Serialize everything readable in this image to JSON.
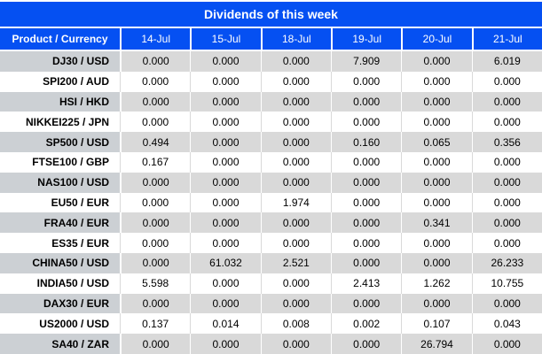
{
  "title": "Dividends of this week",
  "colors": {
    "header_bg": "#0550f2",
    "header_text": "#ffffff",
    "row_gray": "#d9d9d9",
    "label_gray": "#ccd0d4",
    "value_black": "#000000",
    "value_red": "#fa2929"
  },
  "table": {
    "corner_header": "Product / Currency",
    "date_headers": [
      "14-Jul",
      "15-Jul",
      "18-Jul",
      "19-Jul",
      "20-Jul",
      "21-Jul"
    ],
    "rows": [
      {
        "label": "DJ30 / USD",
        "values": [
          "0.000",
          "0.000",
          "0.000",
          "7.909",
          "0.000",
          "6.019"
        ],
        "red": [
          false,
          false,
          false,
          true,
          false,
          true
        ]
      },
      {
        "label": "SPI200 / AUD",
        "values": [
          "0.000",
          "0.000",
          "0.000",
          "0.000",
          "0.000",
          "0.000"
        ],
        "red": [
          false,
          false,
          false,
          false,
          false,
          false
        ]
      },
      {
        "label": "HSI / HKD",
        "values": [
          "0.000",
          "0.000",
          "0.000",
          "0.000",
          "0.000",
          "0.000"
        ],
        "red": [
          false,
          false,
          false,
          false,
          false,
          false
        ]
      },
      {
        "label": "NIKKEI225 / JPN",
        "values": [
          "0.000",
          "0.000",
          "0.000",
          "0.000",
          "0.000",
          "0.000"
        ],
        "red": [
          false,
          false,
          false,
          false,
          false,
          false
        ]
      },
      {
        "label": "SP500 / USD",
        "values": [
          "0.494",
          "0.000",
          "0.000",
          "0.160",
          "0.065",
          "0.356"
        ],
        "red": [
          true,
          false,
          false,
          true,
          true,
          true
        ]
      },
      {
        "label": "FTSE100 / GBP",
        "values": [
          "0.167",
          "0.000",
          "0.000",
          "0.000",
          "0.000",
          "0.000"
        ],
        "red": [
          true,
          false,
          false,
          false,
          false,
          false
        ]
      },
      {
        "label": "NAS100 / USD",
        "values": [
          "0.000",
          "0.000",
          "0.000",
          "0.000",
          "0.000",
          "0.000"
        ],
        "red": [
          false,
          false,
          false,
          false,
          false,
          false
        ]
      },
      {
        "label": "EU50 / EUR",
        "values": [
          "0.000",
          "0.000",
          "1.974",
          "0.000",
          "0.000",
          "0.000"
        ],
        "red": [
          false,
          false,
          true,
          false,
          false,
          false
        ]
      },
      {
        "label": "FRA40 / EUR",
        "values": [
          "0.000",
          "0.000",
          "0.000",
          "0.000",
          "0.341",
          "0.000"
        ],
        "red": [
          false,
          false,
          false,
          false,
          true,
          false
        ]
      },
      {
        "label": "ES35 / EUR",
        "values": [
          "0.000",
          "0.000",
          "0.000",
          "0.000",
          "0.000",
          "0.000"
        ],
        "red": [
          false,
          false,
          false,
          false,
          false,
          false
        ]
      },
      {
        "label": "CHINA50 / USD",
        "values": [
          "0.000",
          "61.032",
          "2.521",
          "0.000",
          "0.000",
          "26.233"
        ],
        "red": [
          false,
          true,
          true,
          false,
          false,
          true
        ]
      },
      {
        "label": "INDIA50 / USD",
        "values": [
          "5.598",
          "0.000",
          "0.000",
          "2.413",
          "1.262",
          "10.755"
        ],
        "red": [
          true,
          false,
          false,
          true,
          true,
          true
        ]
      },
      {
        "label": "DAX30 / EUR",
        "values": [
          "0.000",
          "0.000",
          "0.000",
          "0.000",
          "0.000",
          "0.000"
        ],
        "red": [
          false,
          false,
          false,
          false,
          false,
          false
        ]
      },
      {
        "label": "US2000 / USD",
        "values": [
          "0.137",
          "0.014",
          "0.008",
          "0.002",
          "0.107",
          "0.043"
        ],
        "red": [
          true,
          true,
          true,
          true,
          true,
          true
        ]
      },
      {
        "label": "SA40 / ZAR",
        "values": [
          "0.000",
          "0.000",
          "0.000",
          "0.000",
          "26.794",
          "0.000"
        ],
        "red": [
          false,
          false,
          false,
          false,
          true,
          false
        ]
      }
    ]
  }
}
